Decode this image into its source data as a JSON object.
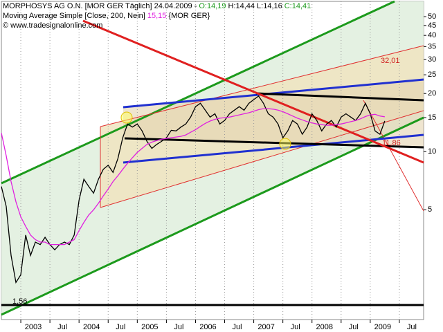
{
  "chart_data": {
    "type": "line",
    "log_scale": true,
    "grid": true,
    "source": "© www.tradesignalonline.com",
    "legend_info": {
      "date": "24.04.2009 -",
      "open": "O:14,19",
      "high": "H:14,44",
      "low": "L:14,16",
      "close": "C:14,41",
      "ma_last": "15,15",
      "ma_symbol": "{MOR GER}"
    },
    "annotations": [
      "32,01",
      "11,86",
      "1,56"
    ],
    "x": [
      "2002-09",
      "2002-10",
      "2002-11",
      "2002-12",
      "2003-01",
      "2003-02",
      "2003-03",
      "2003-04",
      "2003-05",
      "2003-06",
      "2003-07",
      "2003-08",
      "2003-09",
      "2003-10",
      "2003-11",
      "2003-12",
      "2004-01",
      "2004-02",
      "2004-03",
      "2004-04",
      "2004-05",
      "2004-06",
      "2004-07",
      "2004-08",
      "2004-09",
      "2004-10",
      "2004-11",
      "2004-12",
      "2005-01",
      "2005-02",
      "2005-03",
      "2005-04",
      "2005-05",
      "2005-06",
      "2005-07",
      "2005-08",
      "2005-09",
      "2005-10",
      "2005-11",
      "2005-12",
      "2006-01",
      "2006-02",
      "2006-03",
      "2006-04",
      "2006-05",
      "2006-06",
      "2006-07",
      "2006-08",
      "2006-09",
      "2006-10",
      "2006-11",
      "2006-12",
      "2007-01",
      "2007-02",
      "2007-03",
      "2007-04",
      "2007-05",
      "2007-06",
      "2007-07",
      "2007-08",
      "2007-09",
      "2007-10",
      "2007-11",
      "2007-12",
      "2008-01",
      "2008-02",
      "2008-03",
      "2008-04",
      "2008-05",
      "2008-06",
      "2008-07",
      "2008-08",
      "2008-09",
      "2008-10",
      "2008-11",
      "2008-12",
      "2009-01",
      "2009-02",
      "2009-03",
      "2009-04"
    ],
    "series": [
      {
        "name": "MORPHOSYS AG O.N. [MOR GER  Täglich]",
        "color": "#000000",
        "values": [
          6.6,
          5.2,
          2.9,
          2.1,
          2.3,
          3.7,
          2.9,
          3.4,
          3.3,
          3.6,
          3.3,
          3.1,
          3.3,
          3.4,
          3.3,
          3.7,
          5.6,
          7.2,
          6.6,
          6.1,
          7.2,
          8.1,
          8.5,
          7.8,
          9.2,
          11.8,
          13.9,
          13.4,
          13.9,
          12.8,
          11.3,
          10.4,
          10.9,
          11.3,
          11.8,
          12.9,
          12.8,
          13.4,
          13.9,
          15.1,
          17.1,
          17.8,
          16.4,
          15.1,
          15.7,
          13.9,
          14.5,
          15.7,
          16.4,
          17.1,
          16.4,
          17.8,
          18.6,
          19.4,
          17.8,
          15.7,
          15.1,
          13.9,
          11.8,
          12.8,
          14.5,
          13.9,
          12.3,
          13.4,
          15.7,
          14.5,
          12.8,
          13.9,
          14.5,
          13.4,
          15.1,
          15.7,
          15.1,
          14.5,
          15.7,
          17.8,
          15.7,
          12.8,
          12.3,
          14.41
        ]
      },
      {
        "name": "Moving Average Simple [Close, 200, Nein]",
        "color": "#e020e0",
        "values": [
          12.5,
          9.5,
          7,
          5.5,
          4.6,
          4.1,
          3.7,
          3.5,
          3.4,
          3.4,
          3.3,
          3.3,
          3.3,
          3.3,
          3.4,
          3.5,
          3.9,
          4.3,
          4.7,
          5.0,
          5.4,
          5.9,
          6.4,
          7.0,
          7.5,
          8.1,
          8.7,
          9.3,
          9.9,
          10.4,
          10.9,
          11.2,
          11.4,
          11.6,
          11.7,
          11.8,
          11.9,
          12.0,
          12.2,
          12.6,
          13.0,
          13.5,
          14.0,
          14.4,
          14.7,
          14.9,
          15.0,
          15.1,
          15.3,
          15.5,
          15.7,
          15.9,
          16.2,
          16.5,
          16.7,
          16.7,
          16.6,
          16.4,
          16.1,
          15.7,
          15.3,
          14.9,
          14.6,
          14.3,
          14.1,
          13.9,
          13.8,
          13.7,
          13.7,
          13.8,
          13.9,
          14.1,
          14.3,
          14.5,
          14.8,
          15.2,
          15.5,
          15.6,
          15.3,
          15.15
        ]
      }
    ],
    "xlim": [
      "2002-09",
      "2009-12"
    ],
    "xticks": [
      {
        "value": "2003-01",
        "label": "2003"
      },
      {
        "value": "2003-07",
        "label": "Jul"
      },
      {
        "value": "2004-01",
        "label": "2004"
      },
      {
        "value": "2004-07",
        "label": "Jul"
      },
      {
        "value": "2005-01",
        "label": "2005"
      },
      {
        "value": "2005-07",
        "label": "Jul"
      },
      {
        "value": "2006-01",
        "label": "2006"
      },
      {
        "value": "2006-07",
        "label": "Jul"
      },
      {
        "value": "2007-01",
        "label": "2007"
      },
      {
        "value": "2007-07",
        "label": "Jul"
      },
      {
        "value": "2008-01",
        "label": "2008"
      },
      {
        "value": "2008-07",
        "label": "Jul"
      },
      {
        "value": "2009-01",
        "label": "2009"
      },
      {
        "value": "2009-07",
        "label": "Jul"
      }
    ],
    "ylim": [
      1.35,
      60
    ],
    "yticks": [
      5,
      10,
      15,
      20,
      25,
      30,
      35,
      40,
      45,
      50
    ]
  }
}
